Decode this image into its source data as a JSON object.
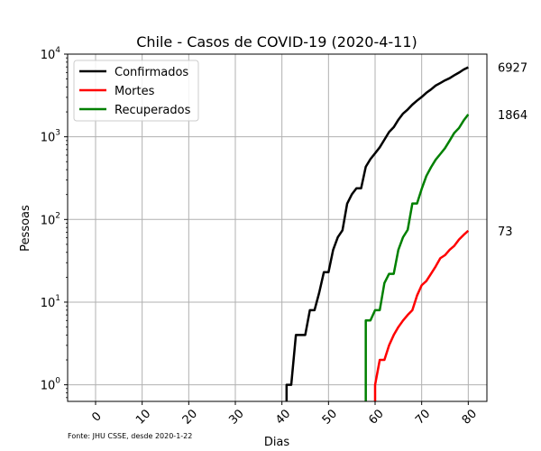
{
  "chart_data": {
    "type": "line",
    "title": "Chile - Casos de COVID-19 (2020-4-11)",
    "xlabel": "Dias",
    "ylabel": "Pessoas",
    "yscale": "log",
    "xlim": [
      -6,
      84
    ],
    "ylim": [
      0.63,
      10000
    ],
    "grid": true,
    "legend_position": "top-left",
    "xticks": [
      0,
      10,
      20,
      30,
      40,
      50,
      60,
      70,
      80
    ],
    "yticks": [
      {
        "value": 1,
        "base": "10",
        "exp": "0"
      },
      {
        "value": 10,
        "base": "10",
        "exp": "1"
      },
      {
        "value": 100,
        "base": "10",
        "exp": "2"
      },
      {
        "value": 1000,
        "base": "10",
        "exp": "3"
      },
      {
        "value": 10000,
        "base": "10",
        "exp": "4"
      }
    ],
    "source_note": "Fonte: JHU CSSE, desde 2020-1-22",
    "series": [
      {
        "name": "Confirmados",
        "color": "#000000",
        "end_label": "6927",
        "points": [
          [
            41,
            1
          ],
          [
            42,
            1
          ],
          [
            43,
            4
          ],
          [
            44,
            4
          ],
          [
            45,
            4
          ],
          [
            46,
            8
          ],
          [
            47,
            8
          ],
          [
            48,
            13
          ],
          [
            49,
            23
          ],
          [
            50,
            23
          ],
          [
            51,
            43
          ],
          [
            52,
            61
          ],
          [
            53,
            74
          ],
          [
            54,
            155
          ],
          [
            55,
            201
          ],
          [
            56,
            238
          ],
          [
            57,
            238
          ],
          [
            58,
            434
          ],
          [
            59,
            537
          ],
          [
            60,
            632
          ],
          [
            61,
            746
          ],
          [
            62,
            922
          ],
          [
            63,
            1142
          ],
          [
            64,
            1306
          ],
          [
            65,
            1610
          ],
          [
            66,
            1909
          ],
          [
            67,
            2139
          ],
          [
            68,
            2449
          ],
          [
            69,
            2738
          ],
          [
            70,
            3031
          ],
          [
            71,
            3404
          ],
          [
            72,
            3737
          ],
          [
            73,
            4161
          ],
          [
            74,
            4471
          ],
          [
            75,
            4815
          ],
          [
            76,
            5116
          ],
          [
            77,
            5546
          ],
          [
            78,
            5972
          ],
          [
            79,
            6501
          ],
          [
            80,
            6927
          ]
        ]
      },
      {
        "name": "Mortes",
        "color": "#ff0000",
        "end_label": "73",
        "points": [
          [
            60,
            1
          ],
          [
            61,
            2
          ],
          [
            62,
            2
          ],
          [
            63,
            3
          ],
          [
            64,
            4
          ],
          [
            65,
            5
          ],
          [
            66,
            6
          ],
          [
            67,
            7
          ],
          [
            68,
            8
          ],
          [
            69,
            12
          ],
          [
            70,
            16
          ],
          [
            71,
            18
          ],
          [
            72,
            22
          ],
          [
            73,
            27
          ],
          [
            74,
            34
          ],
          [
            75,
            37
          ],
          [
            76,
            43
          ],
          [
            77,
            48
          ],
          [
            78,
            57
          ],
          [
            79,
            65
          ],
          [
            80,
            73
          ]
        ]
      },
      {
        "name": "Recuperados",
        "color": "#008000",
        "end_label": "1864",
        "points": [
          [
            58,
            6
          ],
          [
            59,
            6
          ],
          [
            60,
            8
          ],
          [
            61,
            8
          ],
          [
            62,
            17
          ],
          [
            63,
            22
          ],
          [
            64,
            22
          ],
          [
            65,
            43
          ],
          [
            66,
            61
          ],
          [
            67,
            75
          ],
          [
            68,
            156
          ],
          [
            69,
            156
          ],
          [
            70,
            234
          ],
          [
            71,
            335
          ],
          [
            72,
            427
          ],
          [
            73,
            528
          ],
          [
            74,
            619
          ],
          [
            75,
            728
          ],
          [
            76,
            898
          ],
          [
            77,
            1115
          ],
          [
            78,
            1274
          ],
          [
            79,
            1571
          ],
          [
            80,
            1864
          ]
        ]
      }
    ]
  }
}
